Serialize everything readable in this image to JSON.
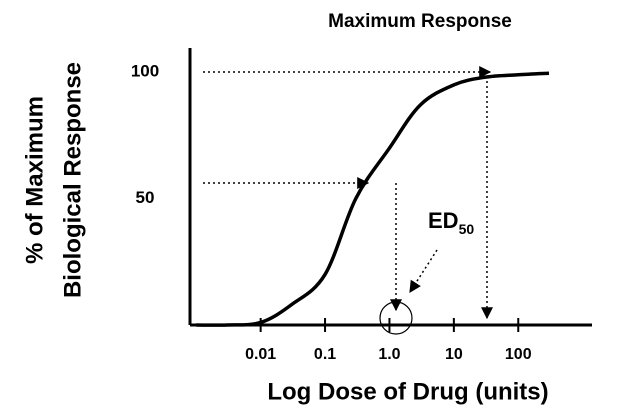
{
  "chart_data": {
    "type": "line",
    "title": "Maximum Response",
    "x_label": "Log Dose of Drug (units)",
    "y_label": [
      "% of Maximum",
      "Biological Response"
    ],
    "annotation": {
      "main": "ED",
      "sub": "50"
    },
    "x": [
      0.001,
      0.003,
      0.01,
      0.03,
      0.1,
      0.3,
      1,
      3,
      10,
      30,
      100,
      300
    ],
    "values": [
      0,
      0,
      1,
      8,
      20,
      50,
      70,
      87,
      95,
      98,
      99,
      99.6
    ],
    "color": "#000000",
    "log_x": true,
    "xlim": [
      0.0008,
      1300
    ],
    "xticks": [
      {
        "value": 0.01,
        "label": "0.01"
      },
      {
        "value": 0.1,
        "label": "0.1"
      },
      {
        "value": 1,
        "label": "1.0"
      },
      10,
      100
    ],
    "ylim": [
      0,
      108
    ],
    "yticks": [
      50,
      100
    ]
  }
}
